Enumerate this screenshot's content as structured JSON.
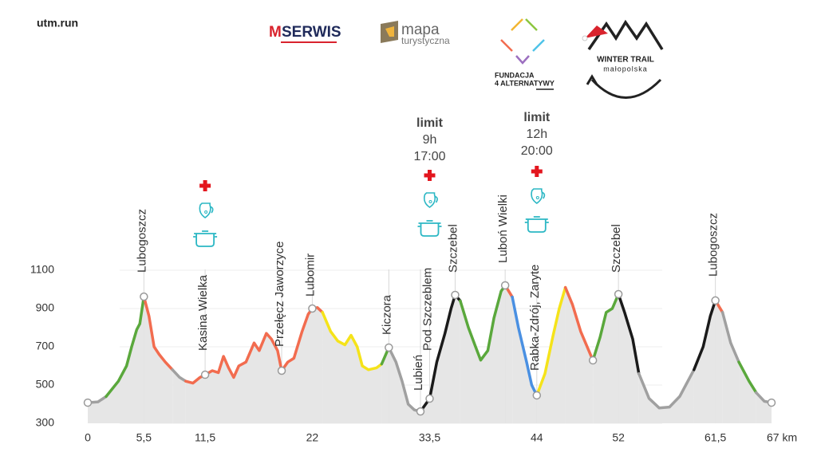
{
  "header": {
    "site": "utm.run",
    "logos": [
      "M",
      "SERWIS",
      "mapa",
      "turystyczna",
      "FUNDACJA",
      "4 ALTERNATYWY",
      "WINTER TRAIL",
      "małopolska"
    ]
  },
  "chart_data": {
    "type": "line",
    "xlim": [
      0,
      67
    ],
    "ylim": [
      300,
      1100
    ],
    "xticks": [
      0,
      {
        "value": 5.5,
        "label": "5,5"
      },
      {
        "value": 11.5,
        "label": "11,5"
      },
      22,
      {
        "value": 33.5,
        "label": "33,5"
      },
      44,
      52,
      {
        "value": 61.5,
        "label": "61,5"
      },
      {
        "value": 67,
        "label": "67 km"
      }
    ],
    "yticks": [
      300,
      500,
      700,
      900,
      1100
    ],
    "grid": true,
    "area_color": "#e6e6e6",
    "series": [
      {
        "color": "#a0a0a0",
        "x": [
          0,
          1,
          1.8
        ],
        "values": [
          408,
          412,
          440
        ]
      },
      {
        "color": "#5aa83c",
        "x": [
          1.8,
          3,
          3.8,
          4.3,
          4.8,
          5.1,
          5.5
        ],
        "values": [
          440,
          520,
          600,
          700,
          790,
          820,
          962
        ]
      },
      {
        "color": "#f26c4f",
        "x": [
          5.5,
          6,
          6.5,
          7,
          7.6,
          8.3
        ],
        "values": [
          962,
          860,
          700,
          660,
          620,
          580
        ]
      },
      {
        "color": "#a0a0a0",
        "x": [
          8.3,
          9,
          9.6
        ],
        "values": [
          580,
          540,
          520
        ]
      },
      {
        "color": "#f26c4f",
        "x": [
          9.6,
          10.3,
          11,
          11.5,
          12.2,
          12.8,
          13.3,
          13.8,
          14.3,
          14.8,
          15.5,
          16.3,
          16.8,
          17.5,
          18,
          18.6,
          19,
          19.6,
          20.2,
          21,
          21.6,
          22,
          22.5,
          23
        ],
        "values": [
          520,
          510,
          540,
          554,
          575,
          565,
          650,
          590,
          540,
          600,
          620,
          720,
          680,
          770,
          740,
          680,
          575,
          620,
          640,
          780,
          870,
          900,
          905,
          880
        ]
      },
      {
        "color": "#f5e31a",
        "x": [
          23,
          23.8,
          24.5,
          25.2,
          25.8,
          26.4,
          26.9,
          27.5,
          28.3,
          28.8
        ],
        "values": [
          880,
          780,
          730,
          710,
          760,
          700,
          600,
          580,
          590,
          610
        ]
      },
      {
        "color": "#5aa83c",
        "x": [
          28.8,
          29.5
        ],
        "values": [
          610,
          696
        ]
      },
      {
        "color": "#a0a0a0",
        "x": [
          29.5,
          30.2,
          30.8,
          31.4,
          32,
          32.6
        ],
        "values": [
          696,
          620,
          520,
          400,
          370,
          362
        ]
      },
      {
        "color": "#1a1a1a",
        "x": [
          32.6,
          33.5,
          34.2,
          35,
          35.6,
          36,
          36.5
        ],
        "values": [
          362,
          429,
          620,
          770,
          900,
          971,
          940
        ]
      },
      {
        "color": "#5aa83c",
        "x": [
          36.5,
          37.3,
          38,
          38.5,
          39.2,
          39.8,
          40.5,
          40.9
        ],
        "values": [
          940,
          800,
          700,
          630,
          680,
          850,
          990,
          1021
        ]
      },
      {
        "color": "#f26c4f",
        "x": [
          40.9,
          41.6
        ],
        "values": [
          1021,
          960
        ]
      },
      {
        "color": "#4a90e2",
        "x": [
          41.6,
          42.2,
          43,
          43.5,
          44
        ],
        "values": [
          960,
          800,
          620,
          500,
          446
        ]
      },
      {
        "color": "#f5e31a",
        "x": [
          44,
          44.8,
          45.6,
          46.2,
          46.8
        ],
        "values": [
          446,
          560,
          760,
          900,
          1010
        ]
      },
      {
        "color": "#f26c4f",
        "x": [
          46.8,
          47.5,
          48.3,
          49.5
        ],
        "values": [
          1010,
          920,
          780,
          629
        ]
      },
      {
        "color": "#5aa83c",
        "x": [
          49.5,
          50.2,
          50.8,
          51.4,
          52
        ],
        "values": [
          629,
          750,
          880,
          900,
          975
        ]
      },
      {
        "color": "#1a1a1a",
        "x": [
          52,
          52.6,
          53.4,
          54
        ],
        "values": [
          975,
          880,
          740,
          560
        ]
      },
      {
        "color": "#a0a0a0",
        "x": [
          54,
          55,
          56,
          57,
          58,
          58.6,
          59.4
        ],
        "values": [
          560,
          430,
          380,
          385,
          440,
          500,
          580
        ]
      },
      {
        "color": "#1a1a1a",
        "x": [
          59.4,
          60.3,
          61,
          61.5
        ],
        "values": [
          580,
          700,
          860,
          942
        ]
      },
      {
        "color": "#f26c4f",
        "x": [
          61.5,
          62.2
        ],
        "values": [
          942,
          880
        ]
      },
      {
        "color": "#a0a0a0",
        "x": [
          62.2,
          63,
          63.8
        ],
        "values": [
          880,
          720,
          620
        ]
      },
      {
        "color": "#5aa83c",
        "x": [
          63.8,
          64.8,
          65.5
        ],
        "values": [
          620,
          520,
          460
        ]
      },
      {
        "color": "#a0a0a0",
        "x": [
          65.5,
          66.3,
          67
        ],
        "values": [
          460,
          415,
          408
        ]
      }
    ],
    "waypoints": [
      {
        "name": null,
        "x": 0,
        "elevation": 408
      },
      {
        "name": "Lubogoszcz",
        "x": 5.5,
        "elevation": 962
      },
      {
        "name": "Kasina Wielka",
        "x": 11.5,
        "elevation": 554
      },
      {
        "name": "Przełęcz Jaworzyce",
        "x": 19,
        "elevation": 575
      },
      {
        "name": "Lubomir",
        "x": 22,
        "elevation": 900
      },
      {
        "name": "Kiczora",
        "x": 29.5,
        "elevation": 696
      },
      {
        "name": "Lubień",
        "x": 32.6,
        "elevation": 362
      },
      {
        "name": "Pod Szczeblem",
        "x": 33.5,
        "elevation": 429
      },
      {
        "name": "Szczebel",
        "x": 36,
        "elevation": 971
      },
      {
        "name": "Luboń Wielki",
        "x": 40.9,
        "elevation": 1021
      },
      {
        "name": "Rabka-Zdrój, Zaryte",
        "x": 44,
        "elevation": 446
      },
      {
        "name": null,
        "x": 49.5,
        "elevation": 629
      },
      {
        "name": "Szczebel",
        "x": 52,
        "elevation": 975
      },
      {
        "name": "Lubogoszcz",
        "x": 61.5,
        "elevation": 942
      },
      {
        "name": null,
        "x": 67,
        "elevation": 408
      }
    ],
    "aid_stations": [
      {
        "x": 11.5
      },
      {
        "x": 33.5,
        "limit": [
          "limit",
          "9h",
          "17:00"
        ]
      },
      {
        "x": 44,
        "limit": [
          "limit",
          "12h",
          "20:00"
        ]
      }
    ]
  }
}
